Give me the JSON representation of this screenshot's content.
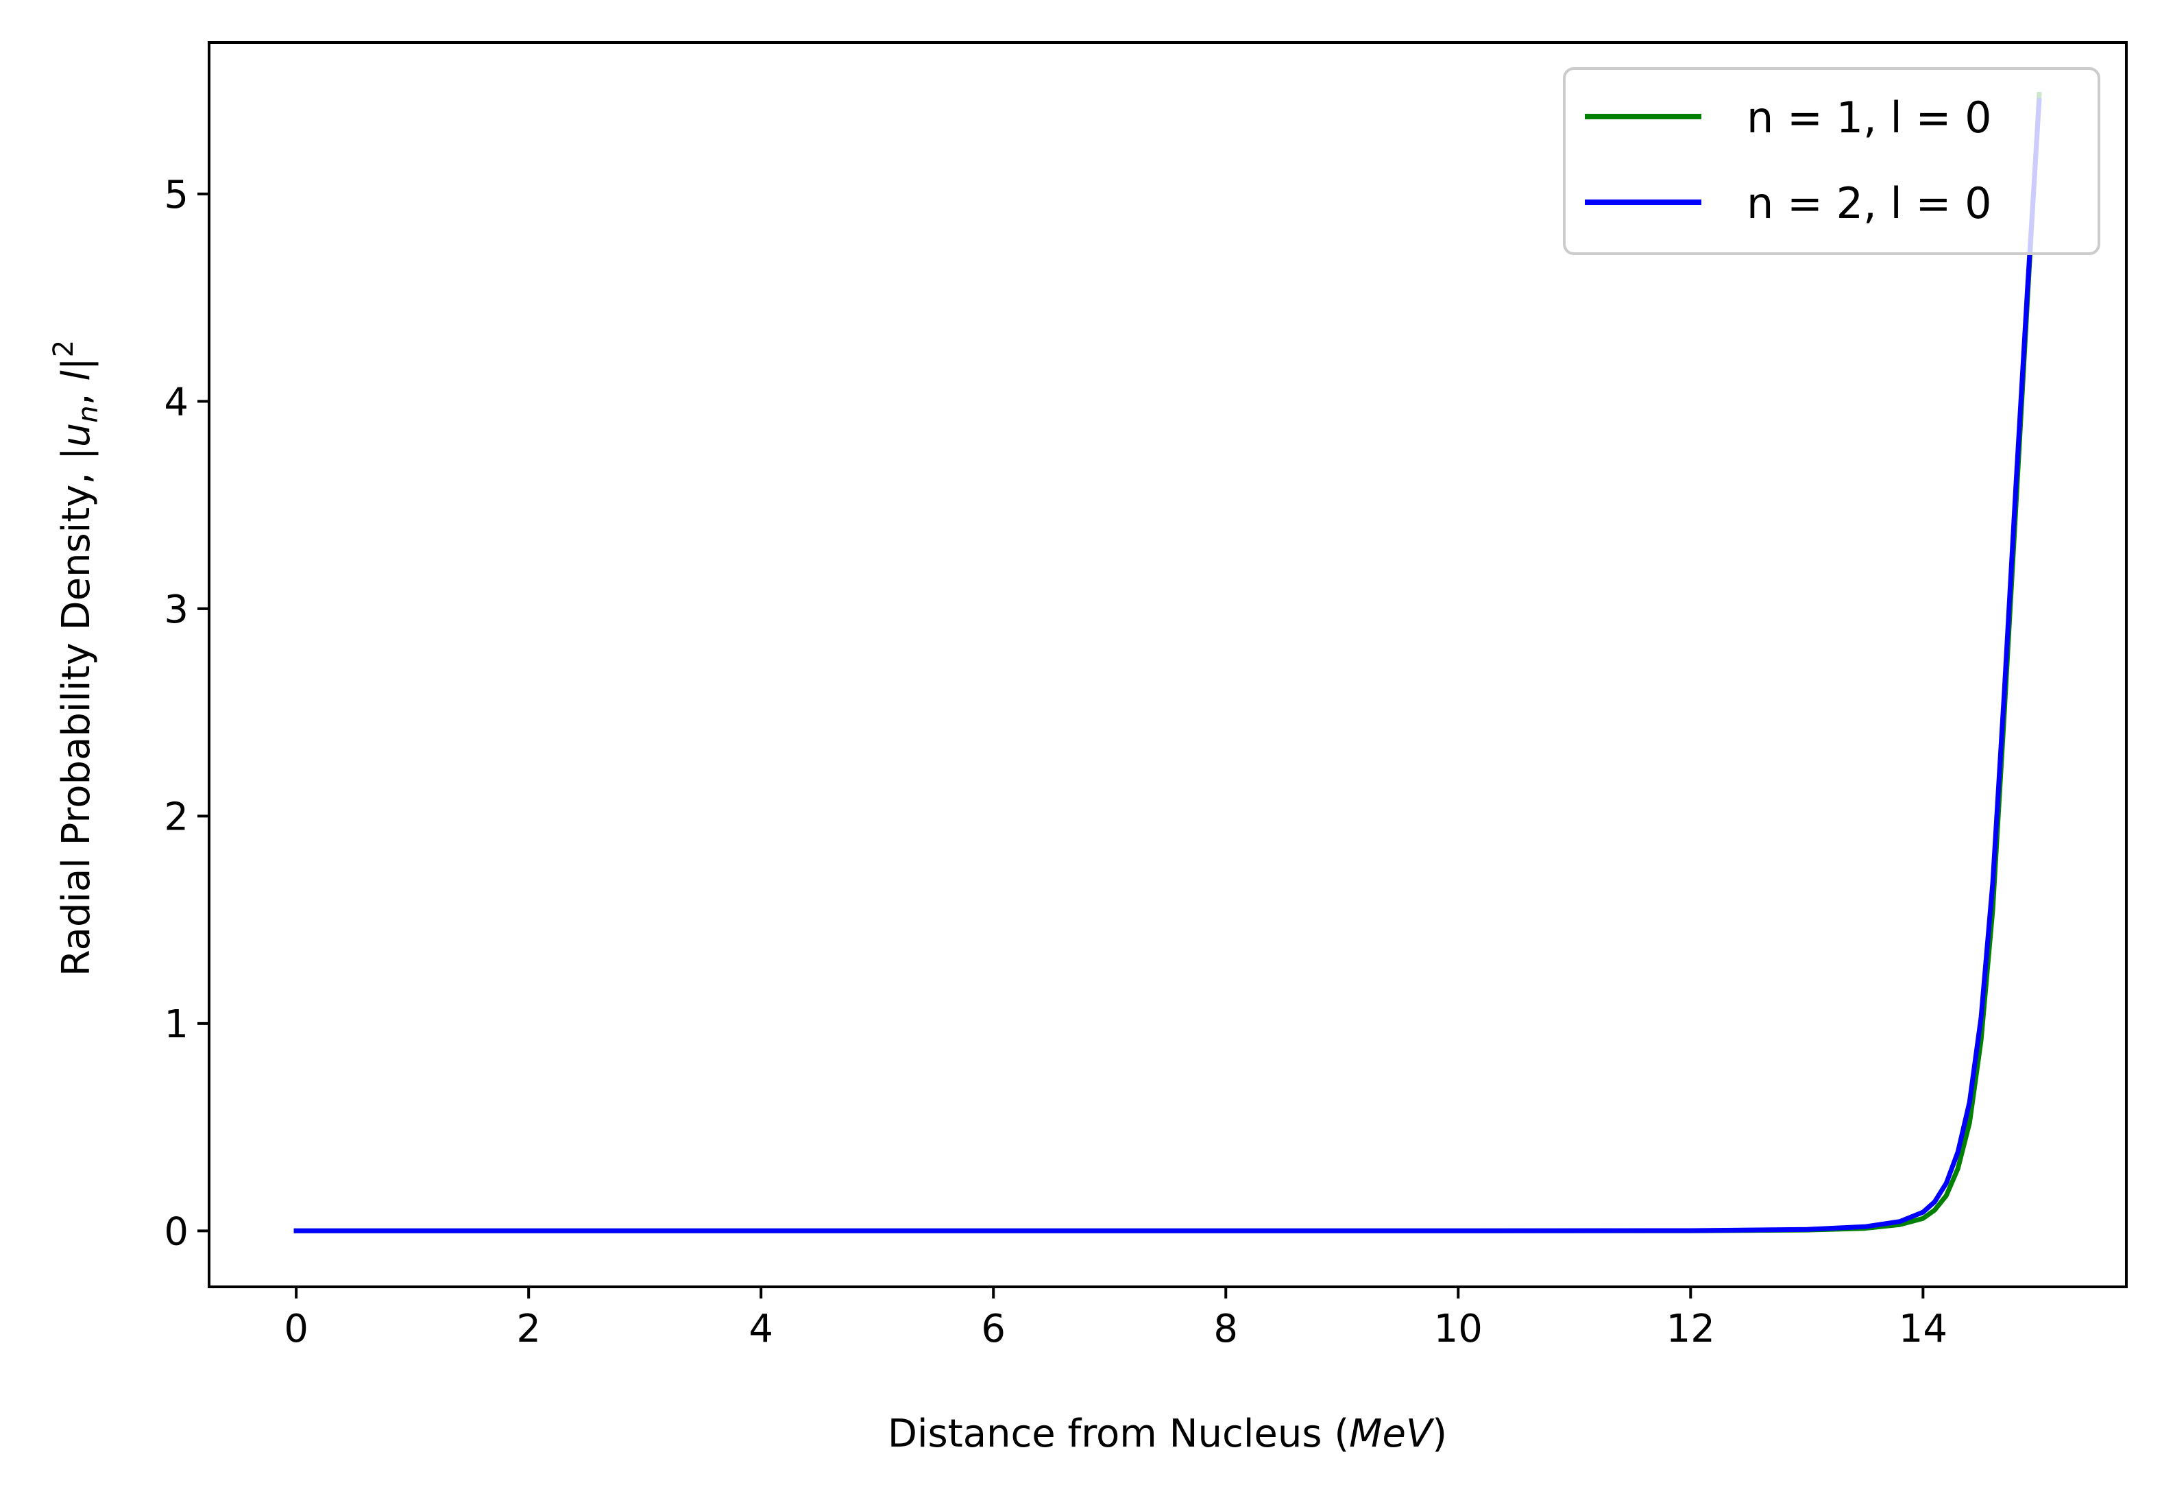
{
  "chart_data": {
    "type": "line",
    "title": "",
    "xlabel": {
      "prefix": "Distance from Nucleus (",
      "italic": "MeV",
      "suffix": ")"
    },
    "ylabel": {
      "prefix": "Radial Probability Density, |",
      "italic_base": "u",
      "italic_sub": "n",
      "middle": ", ",
      "italic_l": "l",
      "suffix": "|",
      "sup": "2"
    },
    "xlim": [
      -0.75,
      15.75
    ],
    "ylim": [
      -0.27,
      5.73
    ],
    "xticks": [
      0,
      2,
      4,
      6,
      8,
      10,
      12,
      14
    ],
    "xtick_labels": [
      "0",
      "2",
      "4",
      "6",
      "8",
      "10",
      "12",
      "14"
    ],
    "yticks": [
      0,
      1,
      2,
      3,
      4,
      5
    ],
    "ytick_labels": [
      "0",
      "1",
      "2",
      "3",
      "4",
      "5"
    ],
    "grid": false,
    "legend_position": "top-right",
    "series": [
      {
        "name": "n = 1, l = 0",
        "color": "#008000",
        "x": [
          0,
          2,
          4,
          6,
          8,
          10,
          12,
          13,
          13.5,
          13.8,
          14.0,
          14.1,
          14.2,
          14.3,
          14.4,
          14.5,
          14.6,
          14.7,
          14.8,
          14.9,
          15.0
        ],
        "y": [
          0,
          0,
          0,
          0,
          0,
          0,
          0.0005,
          0.004,
          0.012,
          0.03,
          0.06,
          0.1,
          0.17,
          0.3,
          0.52,
          0.92,
          1.55,
          2.5,
          3.5,
          4.5,
          5.48
        ]
      },
      {
        "name": "n = 2, l = 0",
        "color": "#0000ff",
        "x": [
          0,
          2,
          4,
          6,
          8,
          10,
          12,
          13,
          13.5,
          13.8,
          14.0,
          14.1,
          14.2,
          14.3,
          14.4,
          14.5,
          14.6,
          14.7,
          14.8,
          14.9,
          15.0
        ],
        "y": [
          0,
          0,
          0,
          0,
          0,
          0,
          0.001,
          0.007,
          0.02,
          0.045,
          0.09,
          0.14,
          0.23,
          0.38,
          0.62,
          1.03,
          1.68,
          2.6,
          3.6,
          4.55,
          5.45
        ]
      }
    ]
  }
}
